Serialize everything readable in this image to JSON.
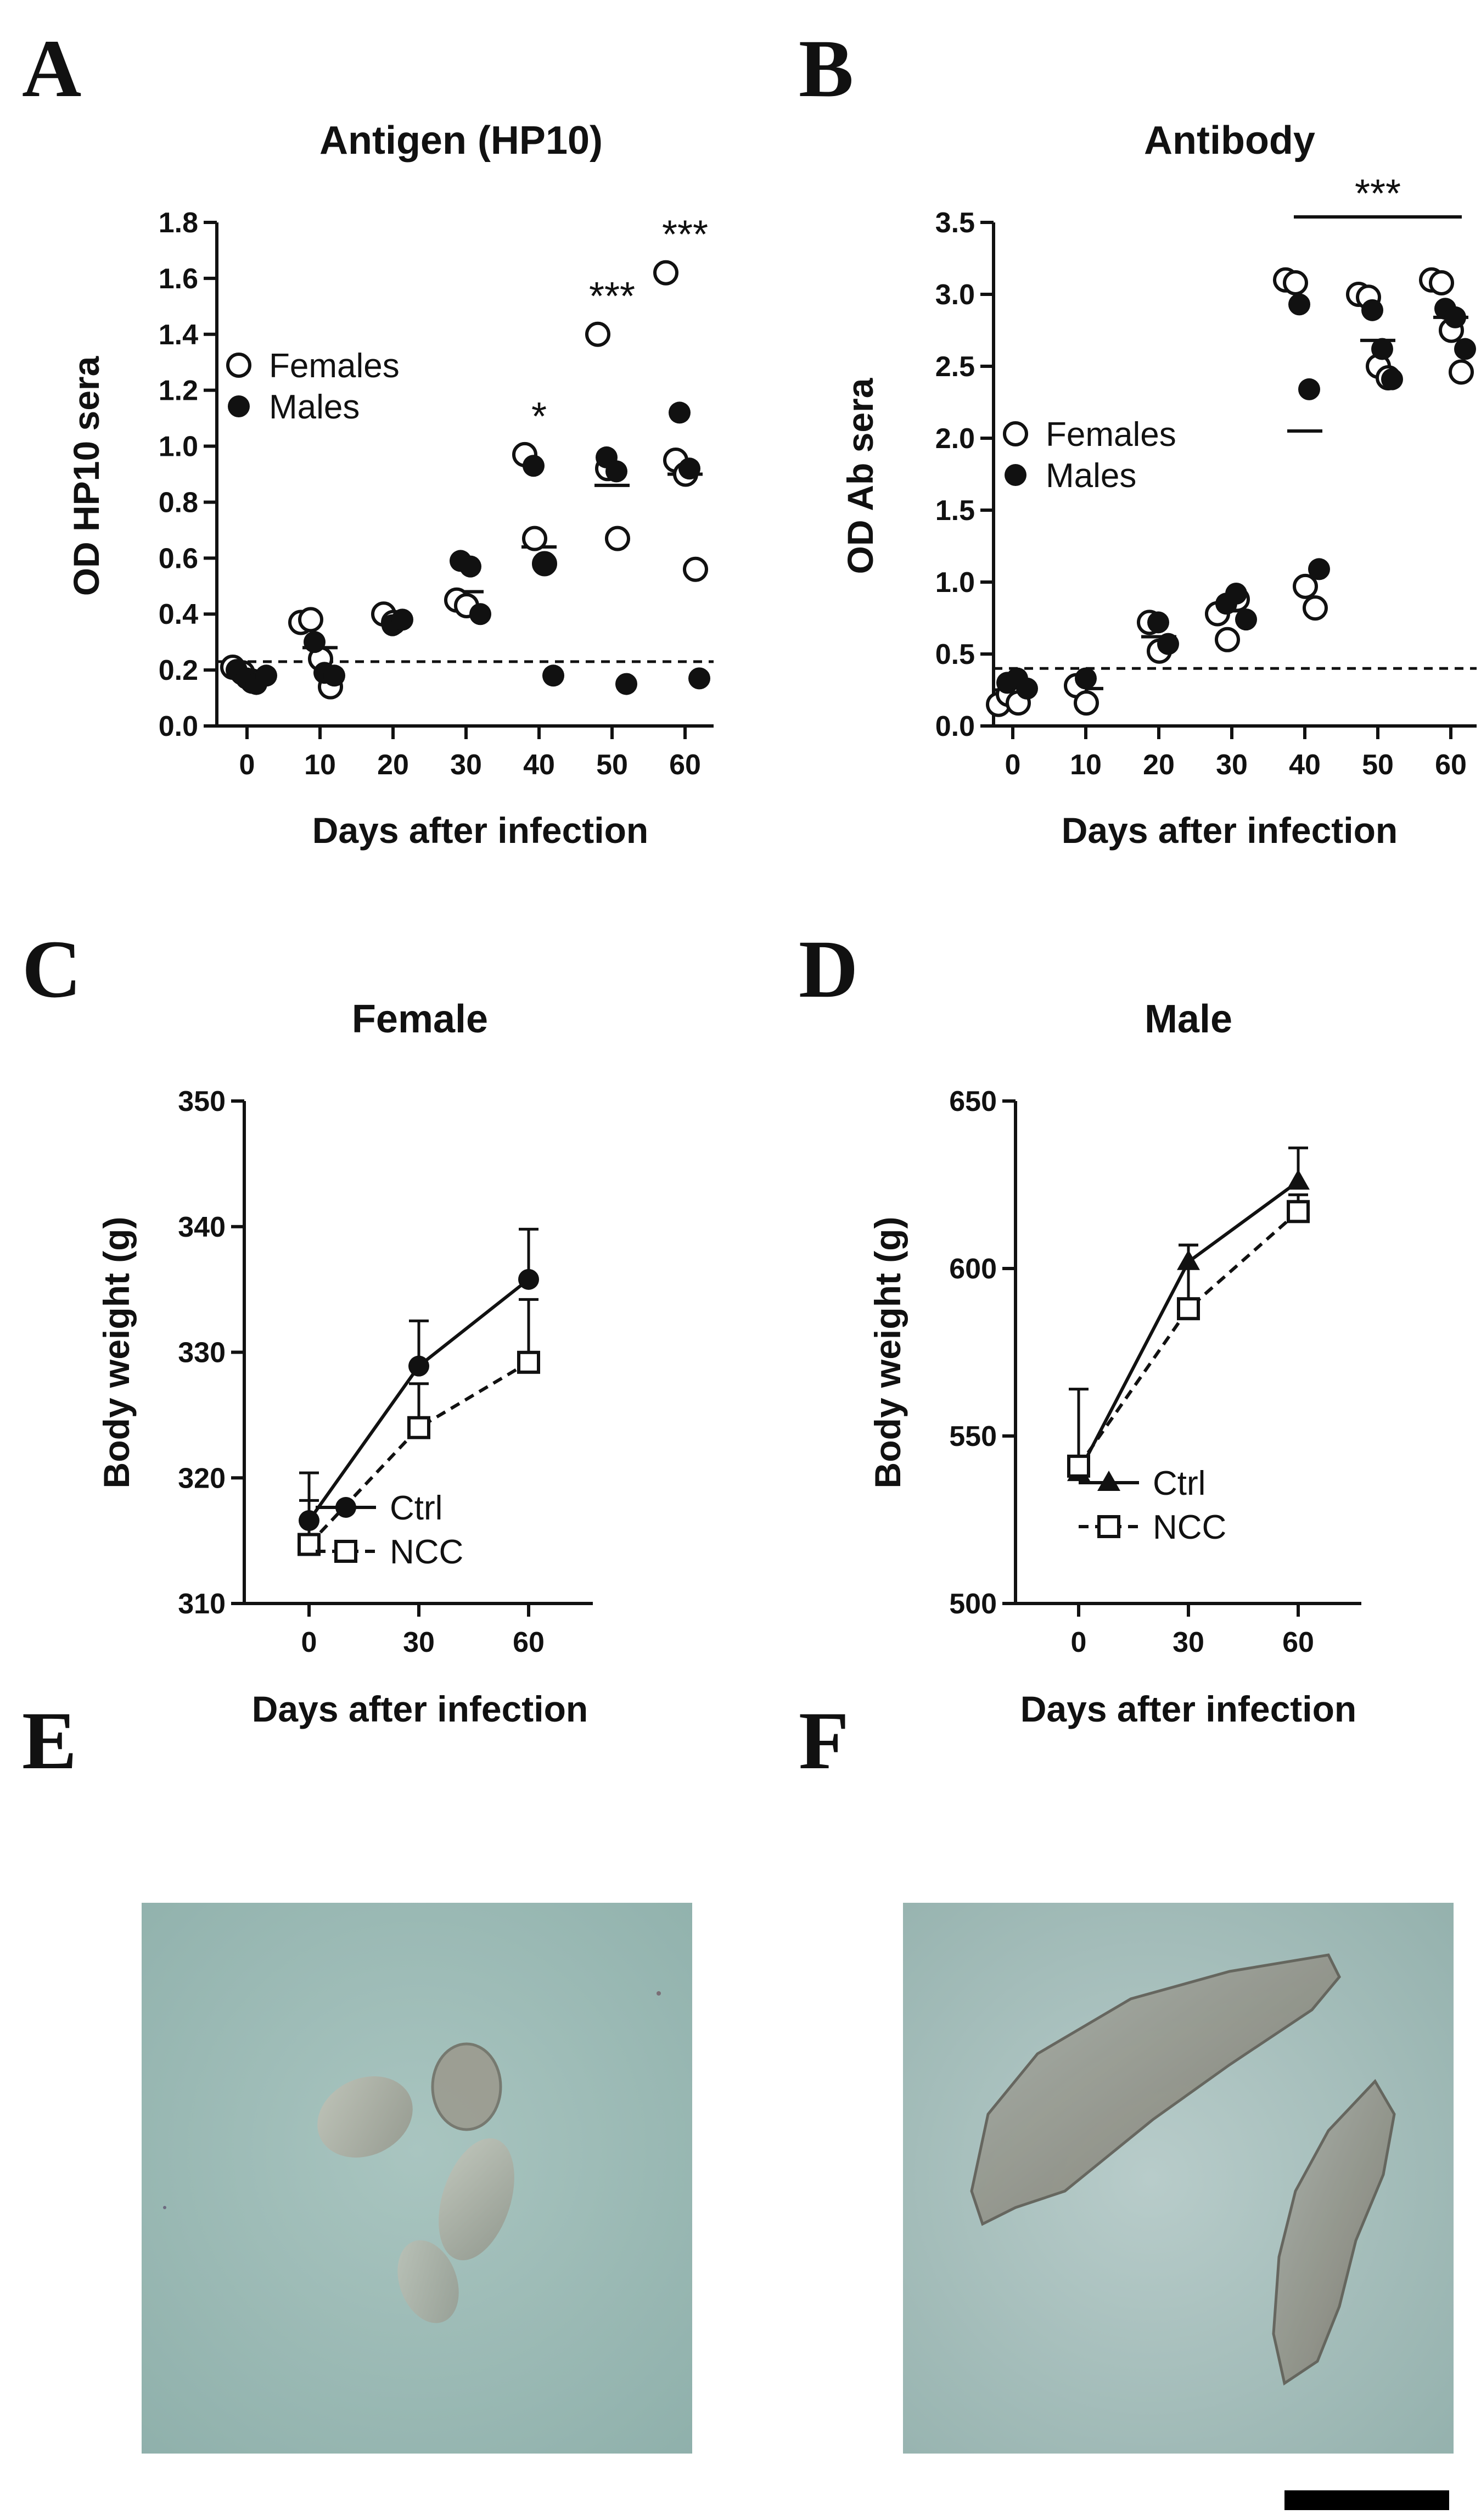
{
  "panel_labels": [
    "A",
    "B",
    "C",
    "D",
    "E",
    "F"
  ],
  "chart_data": [
    {
      "id": "A",
      "type": "scatter",
      "title": "Antigen (HP10)",
      "xlabel": "Days after infection",
      "ylabel": "OD HP10 sera",
      "x_ticks": [
        0,
        10,
        20,
        30,
        40,
        50,
        60
      ],
      "y_ticks": [
        "0.0",
        "0.2",
        "0.4",
        "0.6",
        "0.8",
        "1.0",
        "1.2",
        "1.4",
        "1.6",
        "1.8"
      ],
      "ylim": [
        0,
        1.8
      ],
      "threshold": 0.23,
      "legend": [
        {
          "label": "Females",
          "marker": "open-circle"
        },
        {
          "label": "Males",
          "marker": "filled-circle"
        }
      ],
      "series": [
        {
          "name": "Females",
          "marker": "open",
          "points": {
            "0": [
              0.21,
              0.19,
              0.16
            ],
            "10": [
              0.37,
              0.38,
              0.24,
              0.14
            ],
            "20": [
              0.4,
              0.37
            ],
            "30": [
              0.45,
              0.43
            ],
            "40": [
              0.97,
              0.67,
              0.58
            ],
            "50": [
              1.4,
              0.92,
              0.67
            ],
            "60": [
              1.62,
              0.95,
              0.9,
              0.56
            ]
          }
        },
        {
          "name": "Males",
          "marker": "filled",
          "points": {
            "0": [
              0.2,
              0.17,
              0.15,
              0.18
            ],
            "10": [
              0.3,
              0.19,
              0.18
            ],
            "20": [
              0.36,
              0.38
            ],
            "30": [
              0.59,
              0.57,
              0.4
            ],
            "40": [
              0.93,
              0.58,
              0.18
            ],
            "50": [
              0.96,
              0.91,
              0.15
            ],
            "60": [
              1.12,
              0.92,
              0.17
            ]
          }
        }
      ],
      "means": {
        "0": 0.18,
        "10": 0.28,
        "20": 0.38,
        "30": 0.48,
        "40": 0.64,
        "50": 0.86,
        "60": 0.9
      },
      "significance": [
        {
          "x": "40",
          "label": "*"
        },
        {
          "x": "50",
          "label": "***"
        },
        {
          "x": "60",
          "label": "***"
        }
      ]
    },
    {
      "id": "B",
      "type": "scatter",
      "title": "Antibody",
      "xlabel": "Days after infection",
      "ylabel": "OD Ab sera",
      "x_ticks": [
        0,
        10,
        20,
        30,
        40,
        50,
        60
      ],
      "y_ticks": [
        "0.0",
        "0.5",
        "1.0",
        "1.5",
        "2.0",
        "2.5",
        "3.0",
        "3.5"
      ],
      "ylim": [
        0,
        3.5
      ],
      "threshold": 0.4,
      "legend": [
        {
          "label": "Females",
          "marker": "open-circle"
        },
        {
          "label": "Males",
          "marker": "filled-circle"
        }
      ],
      "series": [
        {
          "name": "Females",
          "marker": "open",
          "points": {
            "0": [
              0.15,
              0.22,
              0.16
            ],
            "10": [
              0.28,
              0.16
            ],
            "20": [
              0.72,
              0.52
            ],
            "30": [
              0.78,
              0.6,
              0.88
            ],
            "40": [
              3.1,
              3.08,
              0.97,
              0.82
            ],
            "50": [
              3.0,
              2.98,
              2.5,
              2.42
            ],
            "60": [
              3.1,
              3.08,
              2.75,
              2.46
            ]
          }
        },
        {
          "name": "Males",
          "marker": "filled",
          "points": {
            "0": [
              0.3,
              0.33,
              0.26
            ],
            "10": [
              0.33
            ],
            "20": [
              0.72,
              0.57
            ],
            "30": [
              0.85,
              0.92,
              0.74
            ],
            "40": [
              2.93,
              2.34,
              1.09
            ],
            "50": [
              2.89,
              2.62,
              2.41
            ],
            "60": [
              2.9,
              2.84,
              2.62
            ]
          }
        }
      ],
      "means": {
        "0": 0.25,
        "10": 0.26,
        "20": 0.62,
        "30": 0.8,
        "40": 2.05,
        "50": 2.68,
        "60": 2.84
      },
      "significance": [
        {
          "x_from": "40",
          "x_to": "60",
          "label": "***"
        }
      ]
    },
    {
      "id": "C",
      "type": "line",
      "title": "Female",
      "xlabel": "Days after infection",
      "ylabel": "Body weight (g)",
      "x": [
        0,
        30,
        60
      ],
      "y_ticks": [
        "310",
        "320",
        "330",
        "340",
        "350"
      ],
      "ylim": [
        310,
        350
      ],
      "series": [
        {
          "name": "Ctrl",
          "marker": "filled-circle",
          "line": "solid",
          "values": [
            316.6,
            328.9,
            335.8
          ],
          "errors": [
            3.8,
            3.6,
            4.0
          ]
        },
        {
          "name": "NCC",
          "marker": "open-square",
          "line": "dashed",
          "values": [
            314.7,
            324.0,
            329.2
          ],
          "errors": [
            3.5,
            3.5,
            5.0
          ]
        }
      ]
    },
    {
      "id": "D",
      "type": "line",
      "title": "Male",
      "xlabel": "Days after infection",
      "ylabel": "Body weight (g)",
      "x": [
        0,
        30,
        60
      ],
      "y_ticks": [
        "500",
        "550",
        "600",
        "650"
      ],
      "ylim": [
        500,
        650
      ],
      "series": [
        {
          "name": "Ctrl",
          "marker": "filled-triangle",
          "line": "solid",
          "values": [
            539,
            602,
            626
          ],
          "errors": [
            3,
            5,
            10
          ]
        },
        {
          "name": "NCC",
          "marker": "open-square",
          "line": "dashed",
          "values": [
            541,
            588,
            617
          ],
          "errors": [
            23,
            19,
            5
          ]
        }
      ]
    }
  ]
}
